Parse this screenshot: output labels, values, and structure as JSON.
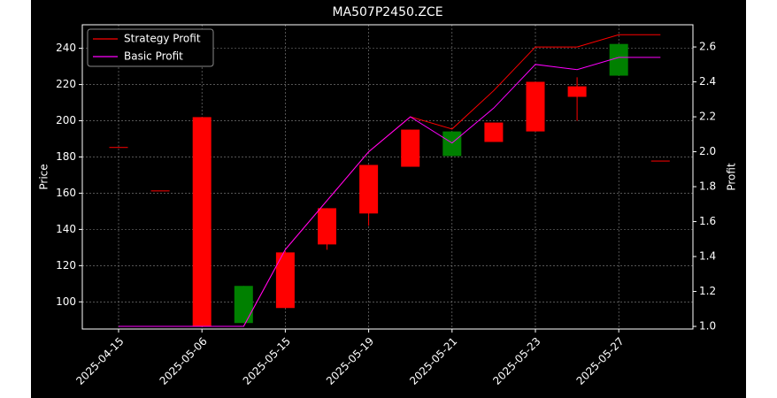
{
  "chart_data": {
    "type": "candlestick",
    "title": "MA507P2450.ZCE",
    "y_label": "Price",
    "y2_label": "Profit",
    "categories": [
      "2025-04-15",
      null,
      "2025-05-06",
      null,
      "2025-05-15",
      null,
      "2025-05-19",
      null,
      "2025-05-21",
      null,
      "2025-05-23",
      null,
      "2025-05-27",
      null
    ],
    "open": [
      185.5,
      161.5,
      86.3,
      108.8,
      96.6,
      131.7,
      148.8,
      174.6,
      194.1,
      188.3,
      194.1,
      213.2,
      242.4,
      178
    ],
    "high": [
      185.5,
      161.5,
      202,
      108.8,
      128,
      151.7,
      175.6,
      195.1,
      194.1,
      199,
      221.5,
      224,
      242.4,
      178
    ],
    "low": [
      185.5,
      161.5,
      86.3,
      88.3,
      96.6,
      128.8,
      142,
      174.6,
      180.5,
      188.3,
      194.1,
      200,
      224.9,
      178
    ],
    "close": [
      185.5,
      161.5,
      202,
      88.3,
      127.3,
      151.7,
      175.6,
      195.1,
      180.5,
      199,
      221.5,
      219,
      224.9,
      178
    ],
    "up_color": "#ff0000",
    "down_color": "#008000",
    "series": [
      {
        "name": "Strategy Profit",
        "color": "#ff0000",
        "axis": "y2",
        "values": [
          1,
          1,
          1,
          1,
          1.44,
          1.72,
          2,
          2.2,
          2.13,
          2.35,
          2.6,
          2.6,
          2.67,
          2.67
        ]
      },
      {
        "name": "Basic Profit",
        "color": "#ff00ff",
        "axis": "y2",
        "values": [
          1,
          1,
          1,
          1,
          1.44,
          1.72,
          2,
          2.2,
          2.05,
          2.25,
          2.5,
          2.47,
          2.54,
          2.54
        ]
      }
    ],
    "ylim": [
      85,
      253
    ],
    "yticks": [
      100,
      120,
      140,
      160,
      180,
      200,
      220,
      240
    ],
    "y2lim": [
      0.985,
      2.727
    ],
    "y2ticks": [
      {
        "value": 1,
        "label": "1.0"
      },
      1.2,
      1.4,
      1.6,
      1.8,
      {
        "value": 2,
        "label": "2.0"
      },
      2.2,
      2.4,
      2.6
    ],
    "grid": true,
    "legend": "upper left"
  }
}
